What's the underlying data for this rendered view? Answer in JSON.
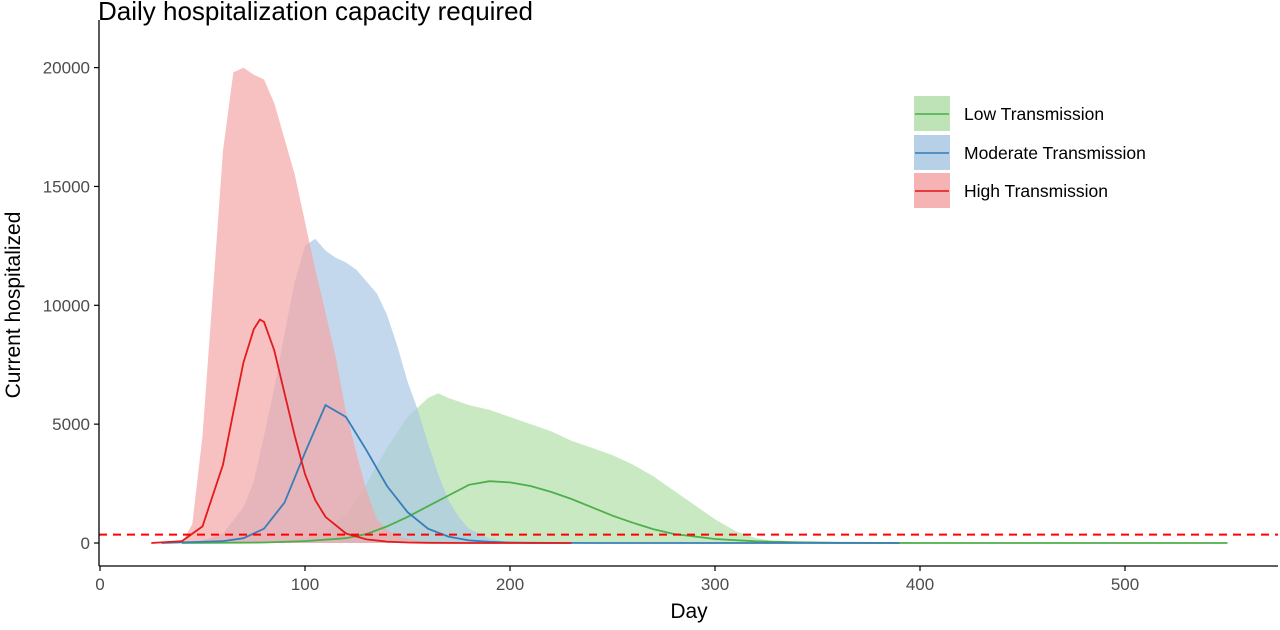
{
  "chart_data": {
    "type": "area",
    "title": "Daily hospitalization capacity required",
    "xlabel": "Day",
    "ylabel": "Current hospitalized",
    "xlim": [
      0,
      550
    ],
    "ylim": [
      0,
      20000
    ],
    "x_ticks": [
      0,
      100,
      200,
      300,
      400,
      500
    ],
    "y_ticks": [
      0,
      5000,
      10000,
      15000,
      20000
    ],
    "grid": false,
    "legend_position": "top-right",
    "reference_line": {
      "y": 350,
      "style": "dashed",
      "color": "#ff0000"
    },
    "series": [
      {
        "name": "Low Transmission",
        "color": "#4daf4a",
        "fill_color": "#b2dfaa",
        "line": {
          "x": [
            40,
            80,
            100,
            120,
            130,
            140,
            150,
            160,
            170,
            180,
            190,
            200,
            210,
            220,
            230,
            240,
            250,
            260,
            270,
            280,
            300,
            320,
            340,
            360,
            380,
            400,
            450,
            500,
            550
          ],
          "y": [
            0,
            20,
            80,
            200,
            380,
            700,
            1100,
            1550,
            2000,
            2450,
            2600,
            2550,
            2400,
            2150,
            1850,
            1500,
            1150,
            850,
            580,
            380,
            170,
            70,
            30,
            10,
            5,
            0,
            0,
            0,
            0
          ]
        },
        "band_upper": {
          "x": [
            60,
            80,
            100,
            110,
            120,
            130,
            140,
            150,
            160,
            165,
            170,
            180,
            190,
            200,
            210,
            220,
            230,
            240,
            250,
            260,
            270,
            280,
            290,
            300,
            310,
            320,
            330,
            340
          ],
          "y": [
            0,
            50,
            200,
            500,
            1200,
            2500,
            4000,
            5300,
            6100,
            6300,
            6100,
            5800,
            5600,
            5300,
            5000,
            4700,
            4300,
            4000,
            3700,
            3300,
            2800,
            2200,
            1600,
            1000,
            500,
            200,
            50,
            0
          ]
        }
      },
      {
        "name": "Moderate Transmission",
        "color": "#377eb8",
        "fill_color": "#aac8e4",
        "line": {
          "x": [
            30,
            60,
            70,
            80,
            90,
            100,
            110,
            120,
            130,
            140,
            150,
            160,
            170,
            180,
            190,
            200,
            210,
            220,
            240,
            260,
            300,
            350,
            390
          ],
          "y": [
            0,
            80,
            200,
            600,
            1700,
            3800,
            5800,
            5300,
            3900,
            2400,
            1300,
            600,
            270,
            110,
            50,
            20,
            10,
            5,
            0,
            0,
            0,
            0,
            0
          ]
        },
        "band_upper": {
          "x": [
            40,
            50,
            60,
            70,
            75,
            80,
            85,
            90,
            95,
            100,
            105,
            110,
            115,
            120,
            125,
            130,
            135,
            140,
            145,
            150,
            155,
            160,
            165,
            170,
            175,
            180,
            190,
            200
          ],
          "y": [
            0,
            100,
            400,
            1500,
            2600,
            4500,
            6500,
            8800,
            11000,
            12500,
            12800,
            12300,
            12000,
            11800,
            11500,
            11000,
            10500,
            9600,
            8300,
            6800,
            5600,
            4200,
            2900,
            1800,
            1100,
            600,
            200,
            0
          ]
        }
      },
      {
        "name": "High Transmission",
        "color": "#e41a1c",
        "fill_color": "#f4a6a6",
        "line": {
          "x": [
            25,
            40,
            50,
            60,
            65,
            70,
            75,
            78,
            80,
            85,
            90,
            95,
            100,
            105,
            110,
            120,
            130,
            140,
            150,
            160,
            180,
            200,
            230
          ],
          "y": [
            0,
            80,
            700,
            3300,
            5500,
            7600,
            9000,
            9400,
            9300,
            8100,
            6300,
            4500,
            2900,
            1800,
            1100,
            400,
            150,
            60,
            20,
            10,
            0,
            0,
            0
          ]
        },
        "band_upper": {
          "x": [
            40,
            45,
            50,
            55,
            60,
            65,
            70,
            75,
            80,
            85,
            90,
            95,
            100,
            105,
            110,
            115,
            120,
            125,
            130,
            135,
            140,
            145,
            150,
            155,
            160,
            165
          ],
          "y": [
            0,
            800,
            4500,
            10500,
            16500,
            19800,
            20000,
            19700,
            19500,
            18500,
            17000,
            15500,
            13500,
            11500,
            9700,
            7800,
            5500,
            3800,
            2200,
            1000,
            550,
            300,
            180,
            100,
            50,
            0
          ]
        }
      }
    ]
  }
}
